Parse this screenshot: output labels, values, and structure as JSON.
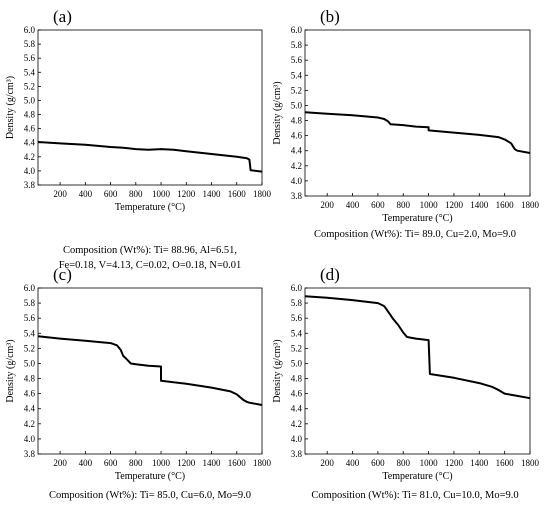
{
  "chart_data": [
    {
      "type": "line",
      "panel_label": "(a)",
      "xlabel": "Temperature (°C)",
      "ylabel": "Density (g/cm³)",
      "xlim": [
        25,
        1800
      ],
      "ylim": [
        3.8,
        6.0
      ],
      "xticks": [
        200,
        400,
        600,
        800,
        1000,
        1200,
        1400,
        1600,
        1800
      ],
      "yticks": [
        3.8,
        4.0,
        4.2,
        4.4,
        4.6,
        4.8,
        5.0,
        5.2,
        5.4,
        5.6,
        5.8,
        6.0
      ],
      "grid": false,
      "series": [
        {
          "x": [
            25,
            200,
            400,
            600,
            700,
            800,
            900,
            1000,
            1100,
            1200,
            1400,
            1600,
            1680,
            1700,
            1710,
            1800
          ],
          "y": [
            4.41,
            4.39,
            4.37,
            4.34,
            4.33,
            4.31,
            4.3,
            4.31,
            4.3,
            4.28,
            4.24,
            4.2,
            4.18,
            4.16,
            4.01,
            3.99
          ]
        }
      ],
      "caption": [
        "Composition (Wt%): Ti= 88.96, Al=6.51,",
        "Fe=0.18, V=4.13, C=0.02, O=0.18, N=0.01"
      ]
    },
    {
      "type": "line",
      "panel_label": "(b)",
      "xlabel": "Temperature (°C)",
      "ylabel": "Density (g/cm³)",
      "xlim": [
        25,
        1800
      ],
      "ylim": [
        3.8,
        6.0
      ],
      "xticks": [
        200,
        400,
        600,
        800,
        1000,
        1200,
        1400,
        1600,
        1800
      ],
      "yticks": [
        3.8,
        4.0,
        4.2,
        4.4,
        4.6,
        4.8,
        5.0,
        5.2,
        5.4,
        5.6,
        5.8,
        6.0
      ],
      "grid": false,
      "series": [
        {
          "x": [
            25,
            200,
            400,
            600,
            650,
            680,
            700,
            800,
            900,
            1000,
            1000,
            1200,
            1400,
            1550,
            1600,
            1650,
            1680,
            1700,
            1800
          ],
          "y": [
            4.91,
            4.89,
            4.87,
            4.84,
            4.82,
            4.79,
            4.75,
            4.74,
            4.72,
            4.71,
            4.67,
            4.64,
            4.61,
            4.58,
            4.55,
            4.5,
            4.42,
            4.4,
            4.37
          ]
        }
      ],
      "caption": [
        "Composition (Wt%): Ti= 89.0, Cu=2.0, Mo=9.0"
      ]
    },
    {
      "type": "line",
      "panel_label": "(c)",
      "xlabel": "Temperature (°C)",
      "ylabel": "Density (g/cm³)",
      "xlim": [
        25,
        1800
      ],
      "ylim": [
        3.8,
        6.0
      ],
      "xticks": [
        200,
        400,
        600,
        800,
        1000,
        1200,
        1400,
        1600,
        1800
      ],
      "yticks": [
        3.8,
        4.0,
        4.2,
        4.4,
        4.6,
        4.8,
        5.0,
        5.2,
        5.4,
        5.6,
        5.8,
        6.0
      ],
      "grid": false,
      "series": [
        {
          "x": [
            25,
            200,
            400,
            600,
            650,
            680,
            700,
            720,
            760,
            800,
            900,
            1000,
            1000,
            1200,
            1400,
            1550,
            1600,
            1650,
            1680,
            1700,
            1800
          ],
          "y": [
            5.36,
            5.33,
            5.3,
            5.27,
            5.24,
            5.18,
            5.1,
            5.07,
            5.0,
            4.99,
            4.97,
            4.96,
            4.77,
            4.73,
            4.68,
            4.63,
            4.59,
            4.52,
            4.49,
            4.48,
            4.45
          ]
        }
      ],
      "caption": [
        "Composition (Wt%): Ti= 85.0, Cu=6.0, Mo=9.0"
      ]
    },
    {
      "type": "line",
      "panel_label": "(d)",
      "xlabel": "Temperature (°C)",
      "ylabel": "Density (g/cm³)",
      "xlim": [
        25,
        1800
      ],
      "ylim": [
        3.8,
        6.0
      ],
      "xticks": [
        200,
        400,
        600,
        800,
        1000,
        1200,
        1400,
        1600,
        1800
      ],
      "yticks": [
        3.8,
        4.0,
        4.2,
        4.4,
        4.6,
        4.8,
        5.0,
        5.2,
        5.4,
        5.6,
        5.8,
        6.0
      ],
      "grid": false,
      "series": [
        {
          "x": [
            25,
            200,
            400,
            600,
            650,
            700,
            720,
            760,
            800,
            830,
            900,
            1000,
            1010,
            1200,
            1400,
            1500,
            1550,
            1600,
            1700,
            1800
          ],
          "y": [
            5.89,
            5.87,
            5.84,
            5.8,
            5.76,
            5.64,
            5.59,
            5.51,
            5.41,
            5.35,
            5.33,
            5.31,
            4.86,
            4.81,
            4.74,
            4.69,
            4.65,
            4.6,
            4.57,
            4.54
          ]
        }
      ],
      "caption": [
        "Composition (Wt%): Ti= 81.0, Cu=10.0, Mo=9.0"
      ]
    }
  ]
}
